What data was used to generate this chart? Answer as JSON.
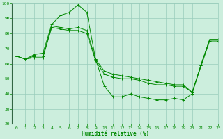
{
  "xlabel": "Humidité relative (%)",
  "bg_color": "#cceedd",
  "grid_color": "#99ccbb",
  "line_color": "#008800",
  "marker": "+",
  "xlim": [
    -0.5,
    23
  ],
  "ylim": [
    20,
    100
  ],
  "xticks": [
    0,
    1,
    2,
    3,
    4,
    5,
    6,
    7,
    8,
    9,
    10,
    11,
    12,
    13,
    14,
    15,
    16,
    17,
    18,
    19,
    20,
    21,
    22,
    23
  ],
  "yticks": [
    20,
    30,
    40,
    50,
    60,
    70,
    80,
    90,
    100
  ],
  "series": [
    {
      "x": [
        0,
        1,
        2,
        3,
        4,
        5,
        6,
        7,
        8,
        9,
        10,
        11,
        12,
        13,
        14,
        15,
        16,
        17,
        18,
        19,
        20,
        21,
        22,
        23
      ],
      "y": [
        65,
        63,
        66,
        67,
        86,
        92,
        94,
        99,
        94,
        63,
        45,
        38,
        38,
        40,
        38,
        37,
        36,
        36,
        37,
        36,
        40,
        59,
        76,
        76
      ]
    },
    {
      "x": [
        0,
        1,
        2,
        3,
        4,
        5,
        6,
        7,
        8,
        9,
        10,
        11,
        12,
        13,
        14,
        15,
        16,
        17,
        18,
        19,
        20,
        21,
        22,
        23
      ],
      "y": [
        65,
        63,
        65,
        65,
        85,
        84,
        83,
        84,
        82,
        63,
        55,
        53,
        52,
        51,
        50,
        49,
        48,
        47,
        46,
        46,
        41,
        59,
        76,
        76
      ]
    },
    {
      "x": [
        0,
        1,
        2,
        3,
        4,
        5,
        6,
        7,
        8,
        9,
        10,
        11,
        12,
        13,
        14,
        15,
        16,
        17,
        18,
        19,
        20,
        21,
        22,
        23
      ],
      "y": [
        65,
        63,
        64,
        64,
        84,
        83,
        82,
        82,
        80,
        62,
        53,
        51,
        50,
        50,
        49,
        47,
        46,
        46,
        45,
        45,
        41,
        58,
        75,
        75
      ]
    }
  ]
}
